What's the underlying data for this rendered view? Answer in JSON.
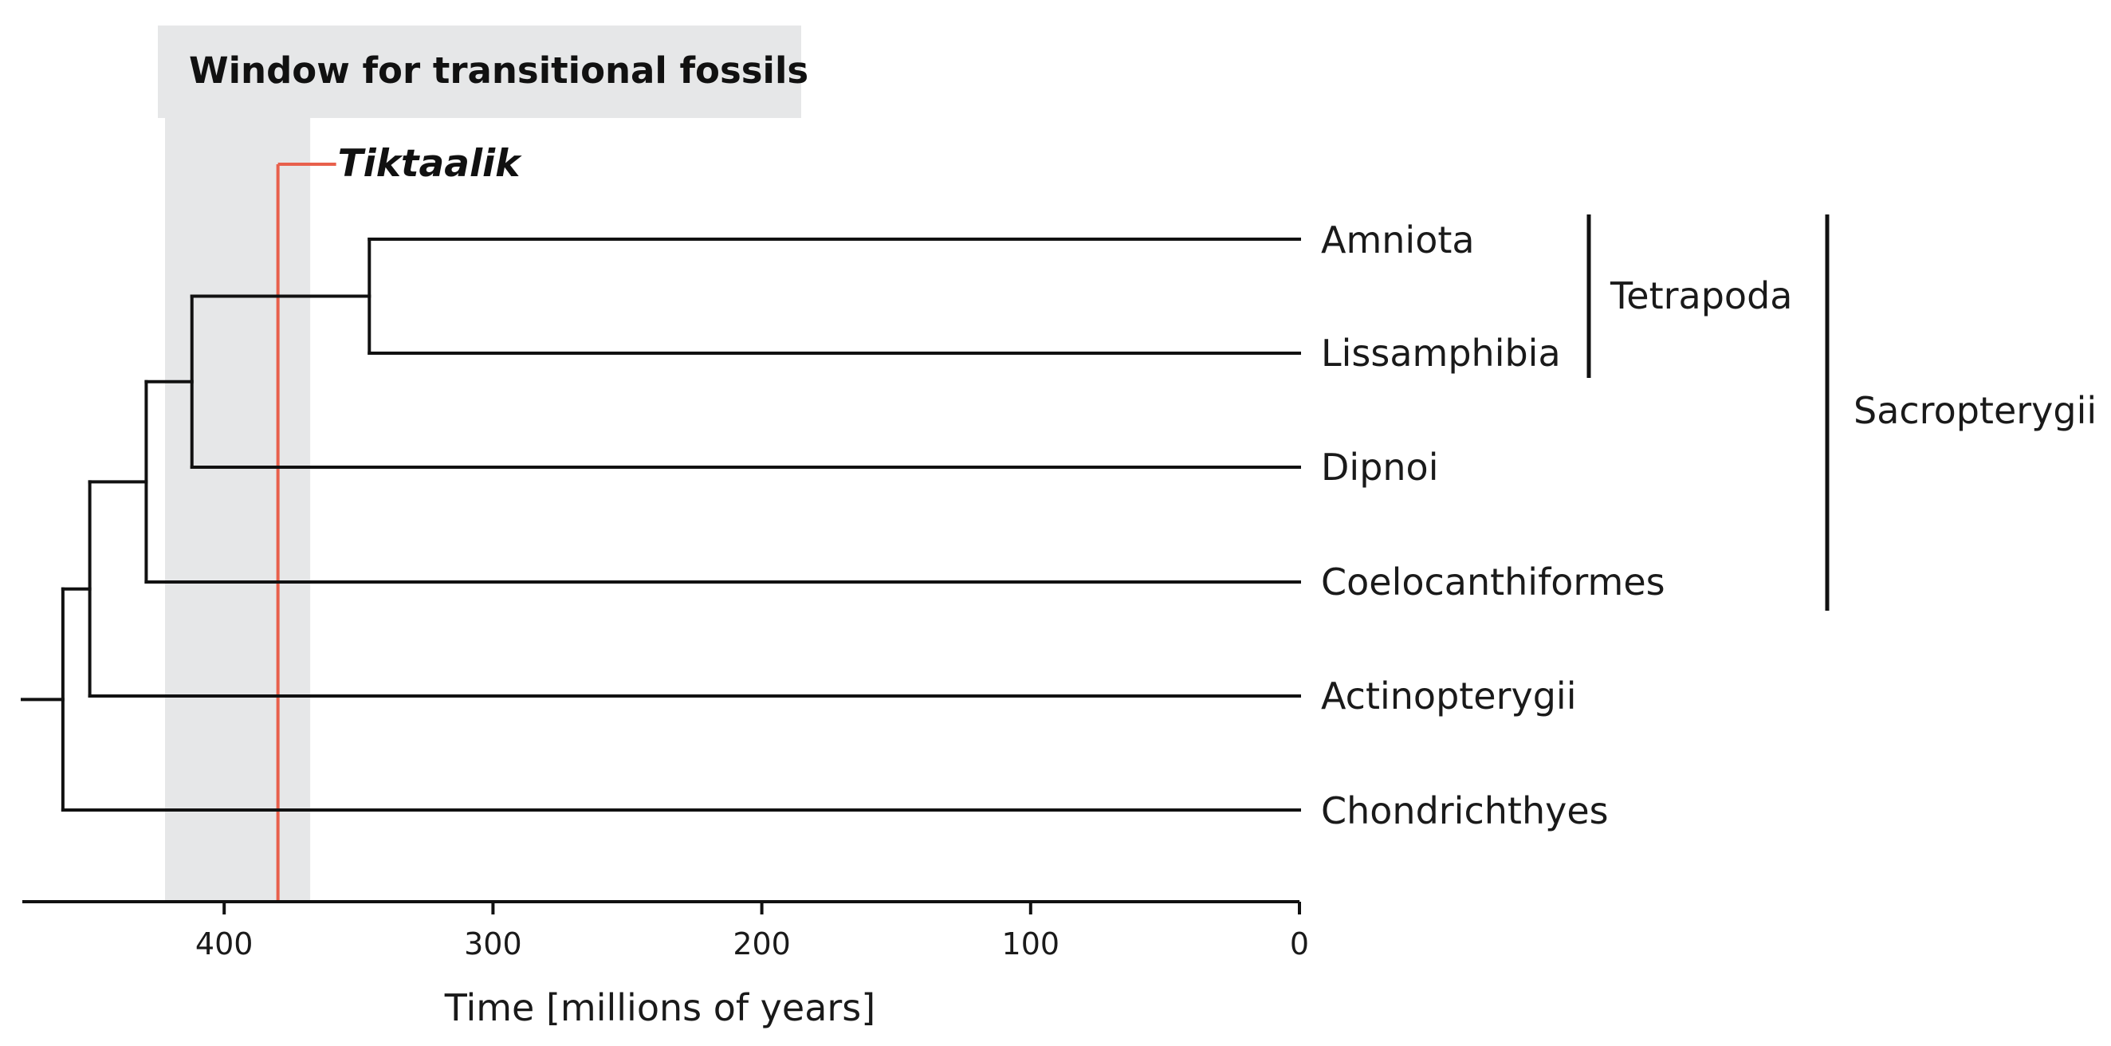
{
  "window": {
    "title": "Window for transitional fossils",
    "range_mya": [
      422,
      368
    ],
    "color": "#e6e7e8"
  },
  "fossil": {
    "name": "Tiktaalik",
    "age_mya": 380,
    "color": "#e8604c"
  },
  "axis": {
    "title": "Time [millions of years]",
    "ticks": [
      "400",
      "300",
      "200",
      "100",
      "0"
    ],
    "tick_values": [
      400,
      300,
      200,
      100,
      0
    ],
    "domain_mya": [
      475,
      0
    ],
    "reversed": true
  },
  "taxa": [
    "Amniota",
    "Lissamphibia",
    "Dipnoi",
    "Coelocanthiformes",
    "Actinopterygii",
    "Chondrichthyes"
  ],
  "nodes": [
    {
      "name": "amniota-lissamphibia",
      "age_mya": 346,
      "children": [
        "Amniota",
        "Lissamphibia"
      ]
    },
    {
      "name": "tetrapoda-dipnoi",
      "age_mya": 412,
      "children": [
        "amniota-lissamphibia",
        "Dipnoi"
      ]
    },
    {
      "name": "sarcopterygii",
      "age_mya": 429,
      "children": [
        "tetrapoda-dipnoi",
        "Coelocanthiformes"
      ]
    },
    {
      "name": "osteichthyes",
      "age_mya": 450,
      "children": [
        "sarcopterygii",
        "Actinopterygii"
      ]
    },
    {
      "name": "gnathostomata",
      "age_mya": 460,
      "children": [
        "osteichthyes",
        "Chondrichthyes"
      ]
    }
  ],
  "clades": [
    {
      "label": "Tetrapoda",
      "members": [
        "Amniota",
        "Lissamphibia"
      ]
    },
    {
      "label": "Sacropterygii",
      "members": [
        "Amniota",
        "Lissamphibia",
        "Dipnoi",
        "Coelocanthiformes"
      ]
    }
  ]
}
